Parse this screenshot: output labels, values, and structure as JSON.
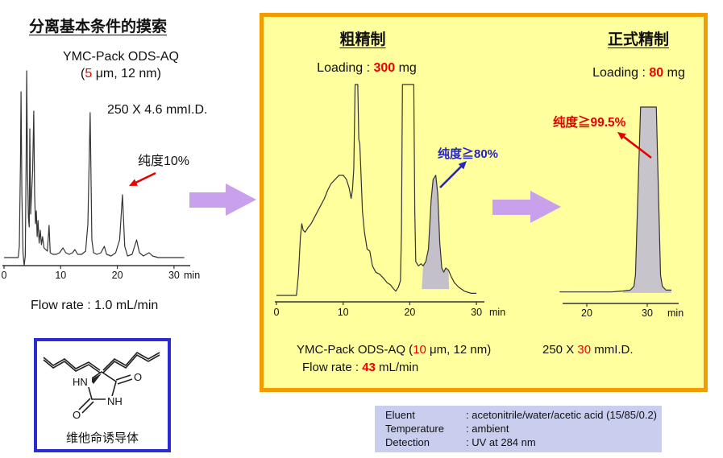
{
  "left_panel": {
    "title": "分离基本条件的摸索",
    "column_name": "YMC-Pack ODS-AQ",
    "column_spec_pre": "(",
    "column_spec_red": "5",
    "column_spec_post": " μm, 12 nm)",
    "dimension": "250 X 4.6 mmI.D.",
    "purity_label": "纯度10%",
    "flow_rate": "Flow rate : 1.0 mL/min",
    "structure_caption": "维他命诱导体",
    "atoms": {
      "n1": "HN",
      "n2": "NH",
      "o1": "O",
      "o2": "O"
    }
  },
  "crude_panel": {
    "title": "粗精制",
    "loading_pre": "Loading : ",
    "loading_red": "300",
    "loading_post": " mg",
    "purity_label": "纯度≧80%",
    "column_pre": "YMC-Pack ODS-AQ (",
    "column_red": "10",
    "column_post": " μm, 12 nm)",
    "flow_pre": "Flow rate : ",
    "flow_red": "43",
    "flow_post": " mL/min"
  },
  "final_panel": {
    "title": "正式精制",
    "loading_pre": "Loading : ",
    "loading_red": "80",
    "loading_post": " mg",
    "purity_label": "纯度≧99.5%",
    "dimension_pre": "250 X ",
    "dimension_red": "30",
    "dimension_post": " mmI.D."
  },
  "conditions_table": {
    "rows": [
      {
        "label": "Eluent",
        "value": ": acetonitrile/water/acetic acid (15/85/0.2)"
      },
      {
        "label": "Temperature",
        "value": ": ambient"
      },
      {
        "label": "Detection",
        "value": ": UV at 284 nm"
      }
    ]
  },
  "chart_data": [
    {
      "type": "line",
      "title": "Analytical chromatogram, YMC-Pack ODS-AQ 5um 250x4.6mm, target purity 10%",
      "x_unit": "min",
      "x_ticks": [
        0,
        10,
        20,
        30
      ],
      "xlim": [
        0,
        32
      ],
      "annotation": "纯度10% peak at ~21 min",
      "points": [
        [
          0,
          1
        ],
        [
          2.5,
          1
        ],
        [
          2.7,
          8
        ],
        [
          2.9,
          60
        ],
        [
          3.0,
          104
        ],
        [
          3.15,
          40
        ],
        [
          3.35,
          4
        ],
        [
          3.55,
          -4
        ],
        [
          3.75,
          2
        ],
        [
          3.9,
          60
        ],
        [
          4.0,
          117
        ],
        [
          4.15,
          55
        ],
        [
          4.3,
          26
        ],
        [
          4.45,
          20
        ],
        [
          4.55,
          81
        ],
        [
          4.7,
          28
        ],
        [
          4.85,
          40
        ],
        [
          5.05,
          55
        ],
        [
          5.25,
          92
        ],
        [
          5.4,
          40
        ],
        [
          5.55,
          22
        ],
        [
          5.7,
          30
        ],
        [
          5.85,
          14
        ],
        [
          6.0,
          24
        ],
        [
          6.2,
          10
        ],
        [
          6.4,
          18
        ],
        [
          6.6,
          9
        ],
        [
          6.8,
          14
        ],
        [
          7.05,
          7
        ],
        [
          7.35,
          6
        ],
        [
          7.65,
          5
        ],
        [
          7.95,
          21
        ],
        [
          8.15,
          4
        ],
        [
          8.6,
          3
        ],
        [
          9.2,
          3
        ],
        [
          9.8,
          4
        ],
        [
          10.4,
          7
        ],
        [
          10.9,
          4
        ],
        [
          11.5,
          3
        ],
        [
          12.1,
          4
        ],
        [
          12.5,
          6
        ],
        [
          13.0,
          3
        ],
        [
          13.7,
          3
        ],
        [
          14.4,
          5
        ],
        [
          14.8,
          22
        ],
        [
          15.2,
          91
        ],
        [
          15.5,
          12
        ],
        [
          15.8,
          4
        ],
        [
          16.4,
          3
        ],
        [
          17.1,
          4
        ],
        [
          17.7,
          8
        ],
        [
          18.1,
          3
        ],
        [
          18.9,
          2
        ],
        [
          19.7,
          4
        ],
        [
          20.4,
          12
        ],
        [
          20.9,
          40
        ],
        [
          21.3,
          8
        ],
        [
          21.8,
          2
        ],
        [
          22.6,
          3
        ],
        [
          23.4,
          12
        ],
        [
          23.9,
          4
        ],
        [
          24.6,
          2
        ],
        [
          25.6,
          4
        ],
        [
          26.2,
          2
        ],
        [
          27.2,
          1
        ],
        [
          28.6,
          1
        ],
        [
          30.0,
          1
        ],
        [
          31.8,
          1
        ]
      ]
    },
    {
      "type": "line",
      "title": "Crude purification chromatogram, loading 300 mg, target purity >=80%",
      "x_unit": "min",
      "x_ticks": [
        0,
        10,
        20,
        30
      ],
      "xlim": [
        0,
        30
      ],
      "annotation": "纯度≧80% shaded peak at ~24 min",
      "points": [
        [
          0,
          0
        ],
        [
          3.0,
          0
        ],
        [
          3.3,
          10
        ],
        [
          3.6,
          28
        ],
        [
          3.8,
          34
        ],
        [
          4.0,
          31
        ],
        [
          4.3,
          30
        ],
        [
          4.7,
          32
        ],
        [
          5.2,
          34
        ],
        [
          5.7,
          37
        ],
        [
          6.2,
          40
        ],
        [
          6.7,
          43
        ],
        [
          7.2,
          46
        ],
        [
          7.7,
          50
        ],
        [
          8.2,
          53
        ],
        [
          8.8,
          55
        ],
        [
          9.4,
          57
        ],
        [
          10.0,
          57
        ],
        [
          10.5,
          55
        ],
        [
          10.9,
          51
        ],
        [
          11.2,
          46
        ],
        [
          11.4,
          50
        ],
        [
          11.6,
          60
        ],
        [
          11.8,
          100
        ],
        [
          12.2,
          100
        ],
        [
          12.35,
          74
        ],
        [
          12.5,
          72
        ],
        [
          12.65,
          60
        ],
        [
          12.9,
          40
        ],
        [
          13.2,
          30
        ],
        [
          13.6,
          22
        ],
        [
          14.0,
          21
        ],
        [
          14.4,
          14
        ],
        [
          14.9,
          11
        ],
        [
          15.5,
          10
        ],
        [
          16.1,
          8
        ],
        [
          16.6,
          6
        ],
        [
          17.1,
          5
        ],
        [
          17.6,
          3
        ],
        [
          17.9,
          2
        ],
        [
          18.3,
          4
        ],
        [
          18.6,
          7
        ],
        [
          18.75,
          30
        ],
        [
          18.9,
          100
        ],
        [
          20.6,
          100
        ],
        [
          20.75,
          40
        ],
        [
          20.9,
          16
        ],
        [
          21.3,
          14
        ],
        [
          21.7,
          15
        ],
        [
          22.0,
          14
        ],
        [
          22.4,
          16
        ],
        [
          22.8,
          22
        ],
        [
          23.2,
          45
        ],
        [
          23.5,
          55
        ],
        [
          23.9,
          57
        ],
        [
          24.2,
          48
        ],
        [
          24.5,
          25
        ],
        [
          24.8,
          13
        ],
        [
          25.1,
          11
        ],
        [
          25.4,
          13
        ],
        [
          25.8,
          12
        ],
        [
          26.2,
          9
        ],
        [
          26.7,
          6
        ],
        [
          27.3,
          4
        ],
        [
          28.2,
          2
        ],
        [
          29.2,
          1
        ],
        [
          30.0,
          1
        ]
      ]
    },
    {
      "type": "line",
      "title": "Final purification chromatogram, loading 80 mg, purity >=99.5%",
      "x_unit": "min",
      "x_ticks": [
        20,
        30
      ],
      "xlim": [
        15,
        34
      ],
      "annotation": "纯度≧99.5% single peak at ~30 min",
      "points": [
        [
          15.5,
          1
        ],
        [
          18,
          1
        ],
        [
          21,
          1
        ],
        [
          24,
          1
        ],
        [
          26,
          1.5
        ],
        [
          27.2,
          2
        ],
        [
          27.8,
          4
        ],
        [
          28.05,
          10
        ],
        [
          28.9,
          100
        ],
        [
          31.5,
          100
        ],
        [
          32.2,
          10
        ],
        [
          32.5,
          4
        ],
        [
          33.1,
          2
        ],
        [
          34.0,
          2
        ]
      ]
    }
  ]
}
